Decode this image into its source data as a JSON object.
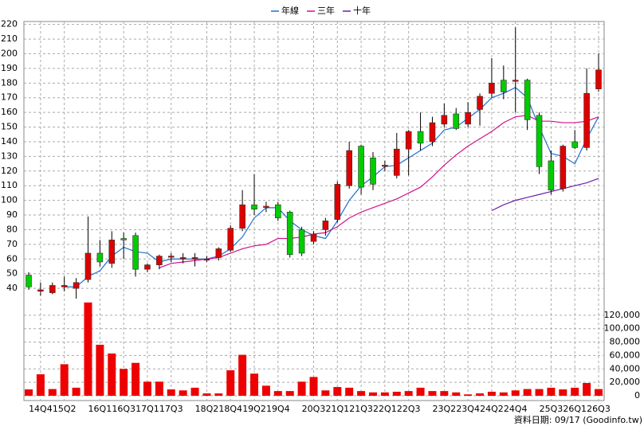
{
  "chart_data": {
    "type": "candlestick",
    "categories": [
      null,
      "14Q4",
      null,
      "15Q2",
      null,
      null,
      "16Q1",
      null,
      "16Q3",
      null,
      "17Q1",
      null,
      "17Q3",
      null,
      null,
      "18Q2",
      null,
      "18Q4",
      null,
      "19Q2",
      null,
      "19Q4",
      null,
      null,
      "20Q3",
      null,
      "21Q1",
      null,
      "21Q3",
      null,
      "22Q1",
      null,
      "22Q3",
      null,
      null,
      "23Q2",
      null,
      "23Q4",
      null,
      "24Q2",
      null,
      "24Q4",
      null,
      null,
      "25Q3",
      null,
      "26Q1",
      null,
      "26Q3"
    ],
    "open": [
      49,
      38,
      37,
      41,
      40,
      46,
      64,
      57,
      74,
      76,
      53,
      56,
      62,
      61,
      61,
      60,
      61,
      66,
      81,
      97,
      96,
      97,
      92,
      80,
      72,
      80,
      87,
      110,
      137,
      129,
      124,
      117,
      135,
      147,
      140,
      152,
      159,
      152,
      162,
      173,
      182,
      182,
      182,
      158,
      127,
      108,
      140,
      136,
      176
    ],
    "high": [
      51,
      44,
      44,
      48,
      47,
      89,
      73,
      79,
      78,
      78,
      57,
      63,
      64,
      64,
      64,
      62,
      68,
      83,
      107,
      118,
      99,
      99,
      93,
      82,
      79,
      88,
      113,
      140,
      138,
      133,
      127,
      146,
      148,
      160,
      157,
      166,
      163,
      167,
      173,
      197,
      192,
      218,
      183,
      160,
      134,
      138,
      148,
      190,
      200
    ],
    "low": [
      39,
      35,
      36,
      38,
      33,
      44,
      55,
      54,
      60,
      48,
      51,
      53,
      58,
      57,
      55,
      58,
      59,
      65,
      79,
      90,
      92,
      86,
      61,
      62,
      70,
      76,
      85,
      108,
      104,
      107,
      120,
      115,
      117,
      134,
      137,
      150,
      148,
      150,
      151,
      170,
      169,
      160,
      148,
      118,
      104,
      106,
      135,
      134,
      174
    ],
    "close": [
      41,
      39,
      42,
      42,
      44,
      64,
      58,
      73,
      73,
      53,
      56,
      62,
      62,
      61,
      61,
      60,
      67,
      81,
      97,
      94,
      96,
      88,
      63,
      64,
      77,
      86,
      111,
      134,
      109,
      111,
      124,
      135,
      147,
      139,
      153,
      158,
      149,
      160,
      171,
      180,
      174,
      182,
      155,
      123,
      107,
      137,
      136,
      173,
      189
    ],
    "up_color": "#dd0000",
    "down_color": "#00cc00",
    "ylim": [
      33,
      222
    ],
    "yticks": [
      40,
      50,
      60,
      70,
      80,
      90,
      100,
      110,
      120,
      130,
      140,
      150,
      160,
      170,
      180,
      190,
      200,
      210,
      220
    ],
    "grid": true,
    "lines": [
      {
        "name": "年線",
        "color": "#1f6fd0",
        "values": [
          null,
          null,
          null,
          41,
          41,
          48,
          52,
          62,
          68,
          65,
          64,
          58,
          60,
          60,
          60,
          60,
          62,
          67,
          75,
          88,
          95,
          95,
          86,
          80,
          76,
          74,
          86,
          100,
          110,
          116,
          123,
          124,
          129,
          134,
          139,
          148,
          150,
          156,
          162,
          170,
          173,
          177,
          170,
          150,
          132,
          130,
          125,
          142,
          157
        ]
      },
      {
        "name": "三年",
        "color": "#d0108a",
        "values": [
          null,
          null,
          null,
          null,
          null,
          null,
          null,
          null,
          null,
          null,
          null,
          54,
          57,
          58,
          59,
          60,
          61,
          64,
          67,
          69,
          70,
          74,
          74,
          75,
          77,
          78,
          82,
          88,
          92,
          95,
          98,
          101,
          105,
          109,
          116,
          124,
          131,
          137,
          142,
          147,
          153,
          157,
          158,
          154,
          154,
          153,
          153,
          154,
          157
        ]
      },
      {
        "name": "十年",
        "color": "#6a1fb0",
        "values": [
          null,
          null,
          null,
          null,
          null,
          null,
          null,
          null,
          null,
          null,
          null,
          null,
          null,
          null,
          null,
          null,
          null,
          null,
          null,
          null,
          null,
          null,
          null,
          null,
          null,
          null,
          null,
          null,
          null,
          null,
          null,
          null,
          null,
          null,
          null,
          null,
          null,
          null,
          null,
          93,
          97,
          100,
          102,
          104,
          106,
          108,
          110,
          112,
          115
        ]
      }
    ],
    "volume": {
      "color": "#ee0000",
      "values": [
        9500,
        32000,
        10000,
        47000,
        12000,
        139000,
        76000,
        63000,
        40000,
        49000,
        21000,
        21000,
        9500,
        8000,
        12000,
        3500,
        3500,
        38000,
        61000,
        33000,
        15000,
        7000,
        7000,
        21000,
        28000,
        8000,
        13000,
        12000,
        7000,
        5000,
        5000,
        6000,
        7000,
        12000,
        7000,
        7000,
        5000,
        2000,
        3500,
        6000,
        5000,
        8000,
        10000,
        10000,
        12000,
        9500,
        12000,
        19000,
        10000
      ],
      "ylim": [
        0,
        140000
      ],
      "yticks": [
        {
          "value": 0,
          "label": "0"
        },
        {
          "value": 20000,
          "label": "20,000"
        },
        {
          "value": 40000,
          "label": "40,000"
        },
        {
          "value": 60000,
          "label": "60,000"
        },
        {
          "value": 80000,
          "label": "80,000"
        },
        {
          "value": 100000,
          "label": "100,000"
        },
        {
          "value": 120000,
          "label": "120,000"
        }
      ]
    },
    "footnote": "資料日期: 09/17  (Goodinfo.tw)"
  }
}
